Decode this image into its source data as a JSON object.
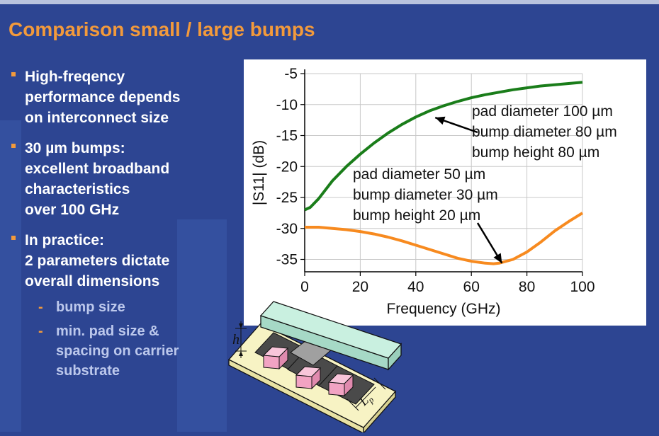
{
  "slide": {
    "title": "Comparison small / large bumps",
    "bullets": [
      {
        "level": 1,
        "text": "High-freqency\nperformance depends\non interconnect size"
      },
      {
        "level": 1,
        "text": "30 µm bumps:\nexcellent broadband\ncharacteristics\nover 100 GHz"
      },
      {
        "level": 1,
        "text": "In practice:\n2 parameters dictate\noverall dimensions"
      },
      {
        "level": 2,
        "text": "bump size"
      },
      {
        "level": 2,
        "text": "min. pad size &\nspacing on carrier\nsubstrate"
      }
    ],
    "sub_marker": "-"
  },
  "diagram": {
    "height_label": "h",
    "pad_label": "L",
    "pad_label_sub": "p"
  },
  "chart_data": {
    "type": "line",
    "title": "",
    "xlabel": "Frequency (GHz)",
    "ylabel": "|S11| (dB)",
    "xlim": [
      0,
      100
    ],
    "ylim": [
      -37,
      -5
    ],
    "xticks": [
      0,
      20,
      40,
      60,
      80,
      100
    ],
    "yticks": [
      -5,
      -10,
      -15,
      -20,
      -25,
      -30,
      -35
    ],
    "grid": true,
    "legend": "none",
    "series": [
      {
        "color": "#1a7d1a",
        "x": [
          0,
          2,
          5,
          10,
          15,
          20,
          25,
          30,
          35,
          40,
          45,
          50,
          55,
          60,
          65,
          70,
          75,
          80,
          85,
          90,
          95,
          100
        ],
        "y": [
          -27,
          -26.6,
          -25.2,
          -22.3,
          -20,
          -18,
          -16.2,
          -14.6,
          -13.2,
          -12,
          -11,
          -10.2,
          -9.5,
          -8.9,
          -8.4,
          -8.0,
          -7.6,
          -7.3,
          -7.0,
          -6.8,
          -6.6,
          -6.4
        ]
      },
      {
        "color": "#f78a1f",
        "x": [
          0,
          5,
          10,
          15,
          20,
          25,
          30,
          35,
          40,
          45,
          50,
          55,
          60,
          65,
          68,
          70,
          75,
          80,
          85,
          90,
          95,
          100
        ],
        "y": [
          -29.8,
          -29.8,
          -30,
          -30.2,
          -30.5,
          -30.9,
          -31.4,
          -32,
          -32.7,
          -33.4,
          -34.1,
          -34.8,
          -35.3,
          -35.6,
          -35.7,
          -35.6,
          -35,
          -33.8,
          -32.2,
          -30.4,
          -28.9,
          -27.5
        ]
      }
    ],
    "annotations": [
      {
        "lines": [
          "pad diameter 100 µm",
          "bump diameter 80 µm",
          "bump height 80 µm"
        ],
        "arrow_to": [
          47,
          -12.1
        ]
      },
      {
        "lines": [
          "pad diameter 50 µm",
          "bump diameter 30 µm",
          "bump height 20 µm"
        ],
        "arrow_to": [
          71,
          -35.6
        ]
      }
    ]
  }
}
